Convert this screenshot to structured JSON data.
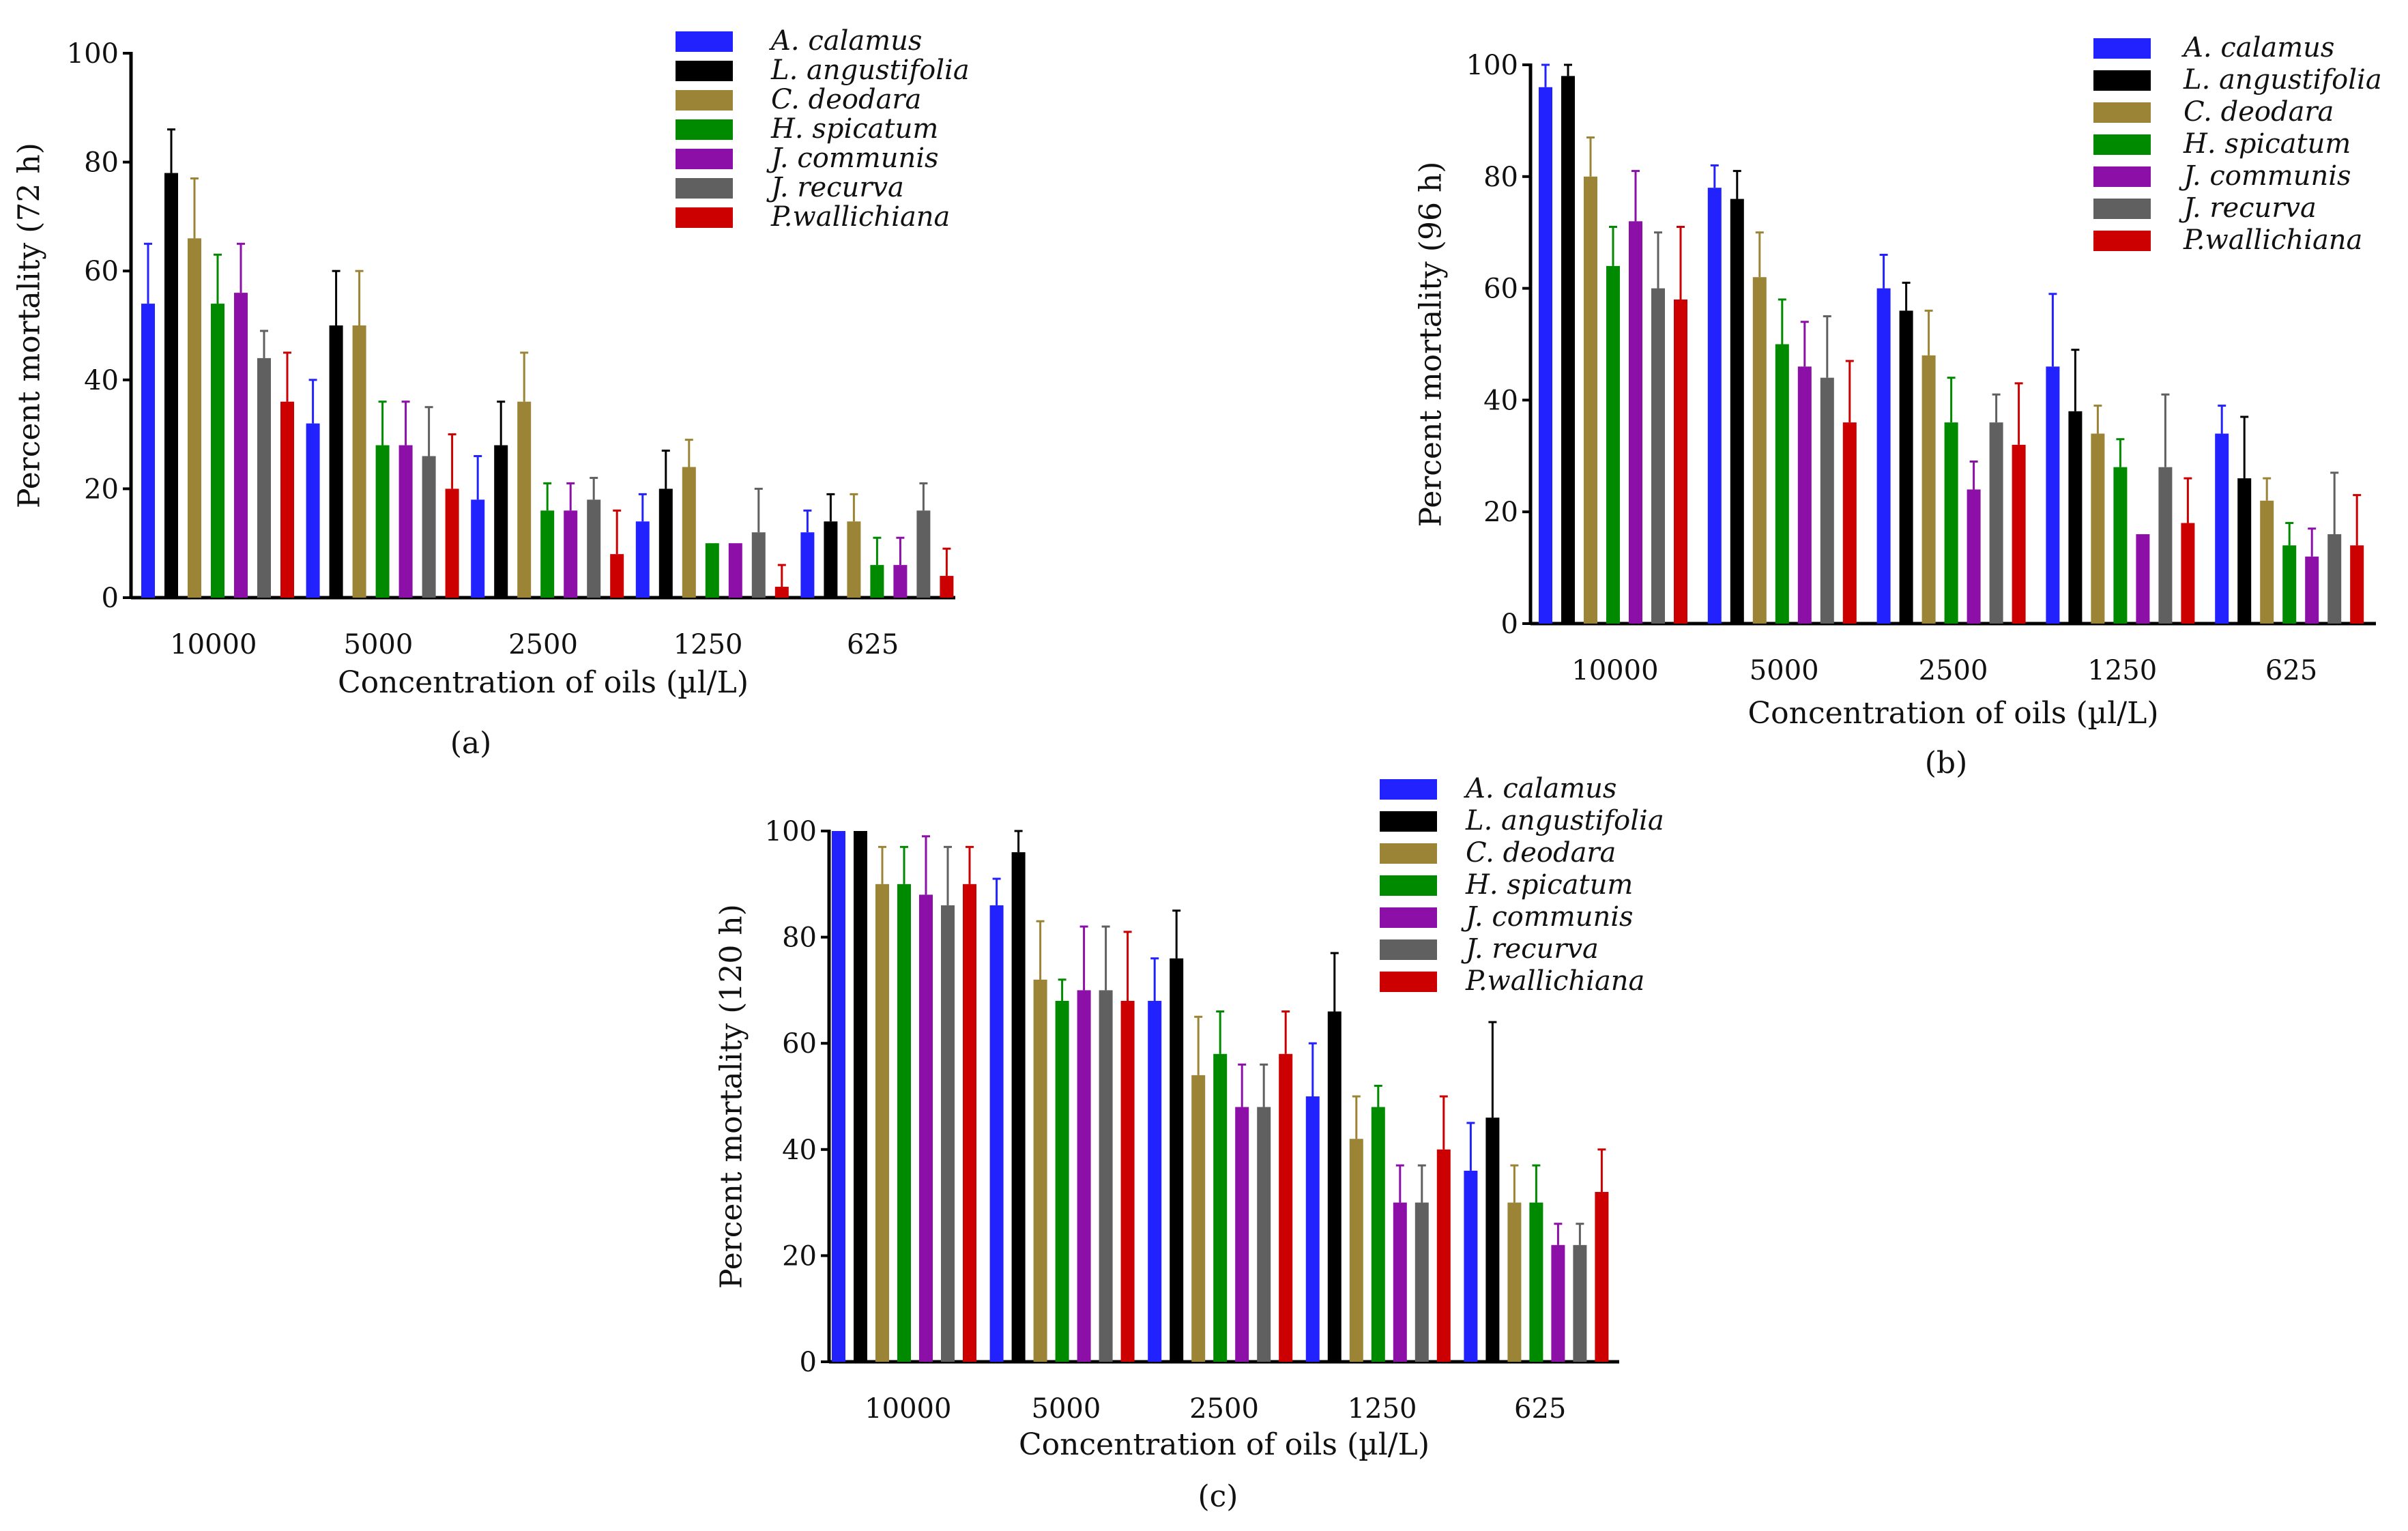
{
  "chart_data": [
    {
      "type": "bar",
      "panel_label": "(a)",
      "xlabel": "Concentration of oils (µl/L)",
      "ylabel": "Percent mortality (72 h)",
      "ylim": [
        0,
        100
      ],
      "yticks": [
        "0",
        "20",
        "40",
        "60",
        "80",
        "100"
      ],
      "categories": [
        "10000",
        "5000",
        "2500",
        "1250",
        "625"
      ],
      "legend_position": "top-right",
      "series": [
        {
          "name": "A. calamus",
          "color": "#2222ff",
          "values": [
            54,
            32,
            18,
            14,
            12
          ],
          "errors": [
            11,
            8,
            8,
            5,
            4
          ]
        },
        {
          "name": "L. angustifolia",
          "color": "#000000",
          "values": [
            78,
            50,
            28,
            20,
            14
          ],
          "errors": [
            8,
            10,
            8,
            7,
            5
          ]
        },
        {
          "name": "C. deodara",
          "color": "#9c8436",
          "values": [
            66,
            50,
            36,
            24,
            14
          ],
          "errors": [
            11,
            10,
            9,
            5,
            5
          ]
        },
        {
          "name": "H. spicatum",
          "color": "#008a00",
          "values": [
            54,
            28,
            16,
            10,
            6
          ],
          "errors": [
            9,
            8,
            5,
            0,
            5
          ]
        },
        {
          "name": "J. communis",
          "color": "#8c0fa8",
          "values": [
            56,
            28,
            16,
            10,
            6
          ],
          "errors": [
            9,
            8,
            5,
            0,
            5
          ]
        },
        {
          "name": "J. recurva",
          "color": "#606060",
          "values": [
            44,
            26,
            18,
            12,
            16
          ],
          "errors": [
            5,
            9,
            4,
            8,
            5
          ]
        },
        {
          "name": "P.wallichiana",
          "color": "#cc0000",
          "values": [
            36,
            20,
            8,
            2,
            4
          ],
          "errors": [
            9,
            10,
            8,
            4,
            5
          ]
        }
      ]
    },
    {
      "type": "bar",
      "panel_label": "(b)",
      "xlabel": "Concentration of oils (µl/L)",
      "ylabel": "Percent mortality (96 h)",
      "ylim": [
        0,
        100
      ],
      "yticks": [
        "0",
        "20",
        "40",
        "60",
        "80",
        "100"
      ],
      "categories": [
        "10000",
        "5000",
        "2500",
        "1250",
        "625"
      ],
      "legend_position": "top-right",
      "series": [
        {
          "name": "A. calamus",
          "color": "#2222ff",
          "values": [
            96,
            78,
            60,
            46,
            34
          ],
          "errors": [
            4,
            4,
            6,
            13,
            5
          ]
        },
        {
          "name": "L. angustifolia",
          "color": "#000000",
          "values": [
            98,
            76,
            56,
            38,
            26
          ],
          "errors": [
            2,
            5,
            5,
            11,
            11
          ]
        },
        {
          "name": "C. deodara",
          "color": "#9c8436",
          "values": [
            80,
            62,
            48,
            34,
            22
          ],
          "errors": [
            7,
            8,
            8,
            5,
            4
          ]
        },
        {
          "name": "H. spicatum",
          "color": "#008a00",
          "values": [
            64,
            50,
            36,
            28,
            14
          ],
          "errors": [
            7,
            8,
            8,
            5,
            4
          ]
        },
        {
          "name": "J. communis",
          "color": "#8c0fa8",
          "values": [
            72,
            46,
            24,
            16,
            12
          ],
          "errors": [
            9,
            8,
            5,
            0,
            5
          ]
        },
        {
          "name": "J. recurva",
          "color": "#606060",
          "values": [
            60,
            44,
            36,
            28,
            16
          ],
          "errors": [
            10,
            11,
            5,
            13,
            11
          ]
        },
        {
          "name": "P.wallichiana",
          "color": "#cc0000",
          "values": [
            58,
            36,
            32,
            18,
            14
          ],
          "errors": [
            13,
            11,
            11,
            8,
            9
          ]
        }
      ]
    },
    {
      "type": "bar",
      "panel_label": "(c)",
      "xlabel": "Concentration of oils (µl/L)",
      "ylabel": "Percent mortality (120 h)",
      "ylim": [
        0,
        100
      ],
      "yticks": [
        "0",
        "20",
        "40",
        "60",
        "80",
        "100"
      ],
      "categories": [
        "10000",
        "5000",
        "2500",
        "1250",
        "625"
      ],
      "legend_position": "top-right",
      "series": [
        {
          "name": "A. calamus",
          "color": "#2222ff",
          "values": [
            100,
            86,
            68,
            50,
            36
          ],
          "errors": [
            0,
            5,
            8,
            10,
            9
          ]
        },
        {
          "name": "L. angustifolia",
          "color": "#000000",
          "values": [
            100,
            96,
            76,
            66,
            46
          ],
          "errors": [
            0,
            4,
            9,
            11,
            18
          ]
        },
        {
          "name": "C. deodara",
          "color": "#9c8436",
          "values": [
            90,
            72,
            54,
            42,
            30
          ],
          "errors": [
            7,
            11,
            11,
            8,
            7
          ]
        },
        {
          "name": "H. spicatum",
          "color": "#008a00",
          "values": [
            90,
            68,
            58,
            48,
            30
          ],
          "errors": [
            7,
            4,
            8,
            4,
            7
          ]
        },
        {
          "name": "J. communis",
          "color": "#8c0fa8",
          "values": [
            88,
            70,
            48,
            30,
            22
          ],
          "errors": [
            11,
            12,
            8,
            7,
            4
          ]
        },
        {
          "name": "J. recurva",
          "color": "#606060",
          "values": [
            86,
            70,
            48,
            30,
            22
          ],
          "errors": [
            11,
            12,
            8,
            7,
            4
          ]
        },
        {
          "name": "P.wallichiana",
          "color": "#cc0000",
          "values": [
            90,
            68,
            58,
            40,
            32
          ],
          "errors": [
            7,
            13,
            8,
            10,
            8
          ]
        }
      ]
    }
  ]
}
